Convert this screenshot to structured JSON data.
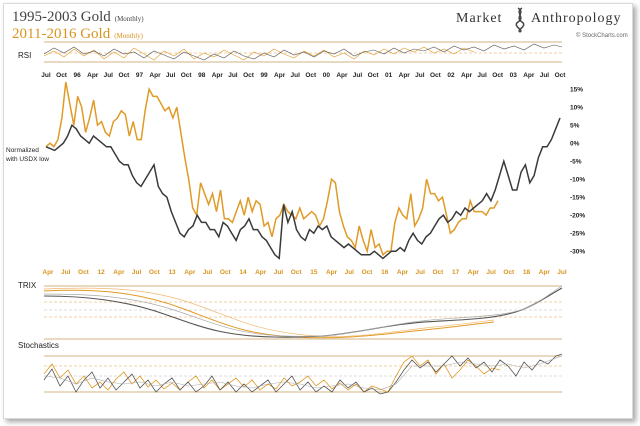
{
  "title_primary": "1995-2003 Gold",
  "title_primary_suffix": "(Monthly)",
  "title_secondary": "2011-2016 Gold",
  "title_secondary_suffix": "(Monthly)",
  "brand_left": "Market",
  "brand_right": "Anthropology",
  "credit": "© StockCharts.com",
  "note_line1": "Normalized",
  "note_line2": "with USDX low",
  "panels": {
    "rsi": "RSI",
    "trix": "TRIX",
    "stochastics": "Stochastics"
  },
  "colors": {
    "series_1995": "#3a3a3a",
    "series_2011": "#e09a26",
    "grid": "#c99a5a",
    "dashed": "#e2a04a"
  },
  "chart_data": {
    "type": "line",
    "ylabel": "",
    "ylim": [
      -33,
      17
    ],
    "yticks": [
      "15%",
      "10%",
      "5%",
      "0%",
      "-5%",
      "-10%",
      "-15%",
      "-20%",
      "-25%",
      "-30%"
    ],
    "ytick_values": [
      15,
      10,
      5,
      0,
      -5,
      -10,
      -15,
      -20,
      -25,
      -30
    ],
    "top_axis_labels": [
      "Jul",
      "Oct",
      "96",
      "Apr",
      "Jul",
      "Oct",
      "97",
      "Apr",
      "Jul",
      "Oct",
      "98",
      "Apr",
      "Jul",
      "Oct",
      "99",
      "Apr",
      "Jul",
      "Oct",
      "00",
      "Apr",
      "Jul",
      "Oct",
      "01",
      "Apr",
      "Jul",
      "Oct",
      "02",
      "Apr",
      "Jul",
      "Oct",
      "03",
      "Apr",
      "Jul",
      "Oct"
    ],
    "bottom_axis_labels": [
      "Apr",
      "Jul",
      "Oct",
      "12",
      "Apr",
      "Jul",
      "Oct",
      "13",
      "Apr",
      "Jul",
      "Oct",
      "14",
      "Apr",
      "Jul",
      "Oct",
      "15",
      "Apr",
      "Jul",
      "Oct",
      "16",
      "Apr",
      "Jul",
      "Oct",
      "17",
      "Apr",
      "Jul",
      "Oct",
      "18",
      "Apr",
      "Jul"
    ],
    "series": [
      {
        "period": "1995-2003",
        "color": "#3a3a3a",
        "values": [
          -1,
          -1.5,
          -2,
          -1,
          0,
          2,
          5,
          4,
          2,
          1,
          0,
          2,
          1,
          0,
          -1,
          -1,
          -3,
          -5,
          -6,
          -6,
          -9,
          -11,
          -12,
          -10,
          -8,
          -6,
          -12,
          -14,
          -15,
          -19,
          -22,
          -25,
          -26,
          -24,
          -23,
          -20,
          -22,
          -22,
          -24,
          -24,
          -26,
          -22,
          -23,
          -25,
          -27,
          -24,
          -23,
          -21,
          -24,
          -24,
          -26,
          -27,
          -29,
          -31,
          -32,
          -17,
          -22,
          -19,
          -24,
          -26,
          -27,
          -24,
          -25,
          -23,
          -24,
          -23,
          -26,
          -27,
          -28,
          -29,
          -28,
          -29,
          -30,
          -31,
          -31,
          -31,
          -30,
          -31,
          -32,
          -31,
          -30,
          -30,
          -29,
          -30,
          -27,
          -25,
          -27,
          -28,
          -26,
          -25,
          -23,
          -21,
          -20,
          -22,
          -21,
          -19,
          -20,
          -18,
          -19,
          -18,
          -17,
          -16,
          -14,
          -16,
          -13,
          -9,
          -5,
          -9,
          -13,
          -13,
          -8,
          -6,
          -11,
          -9,
          -4,
          -1,
          -1,
          1,
          4,
          7
        ]
      },
      {
        "period": "2011-2016",
        "color": "#e09a26",
        "values": [
          -1,
          0,
          -1,
          1,
          7,
          17,
          11,
          5,
          13,
          10,
          3,
          7,
          12,
          5,
          6,
          3,
          2,
          6,
          7,
          9,
          8,
          2,
          6,
          1,
          1,
          9,
          15,
          13,
          13,
          11,
          9,
          10,
          7,
          10,
          3,
          -4,
          -10,
          -18,
          -20,
          -11,
          -14,
          -17,
          -14,
          -19,
          -13,
          -21,
          -21,
          -22,
          -19,
          -16,
          -20,
          -15,
          -19,
          -16,
          -17,
          -23,
          -22,
          -26,
          -21,
          -20,
          -17,
          -19,
          -20,
          -21,
          -18,
          -21,
          -20,
          -19,
          -20,
          -23,
          -21,
          -16,
          -10,
          -11,
          -19,
          -23,
          -26,
          -27,
          -29,
          -23,
          -27,
          -30,
          -24,
          -29,
          -28,
          -31,
          -30,
          -30,
          -22,
          -18,
          -20,
          -21,
          -14,
          -23,
          -21,
          -18,
          -10,
          -14,
          -14,
          -16,
          -15,
          -20,
          -25,
          -24,
          -22,
          -21,
          -21,
          -16,
          -19,
          -19,
          -19,
          -20,
          -18,
          -18,
          -16
        ]
      }
    ],
    "sub_panels": [
      "RSI",
      "TRIX",
      "Stochastics"
    ]
  }
}
